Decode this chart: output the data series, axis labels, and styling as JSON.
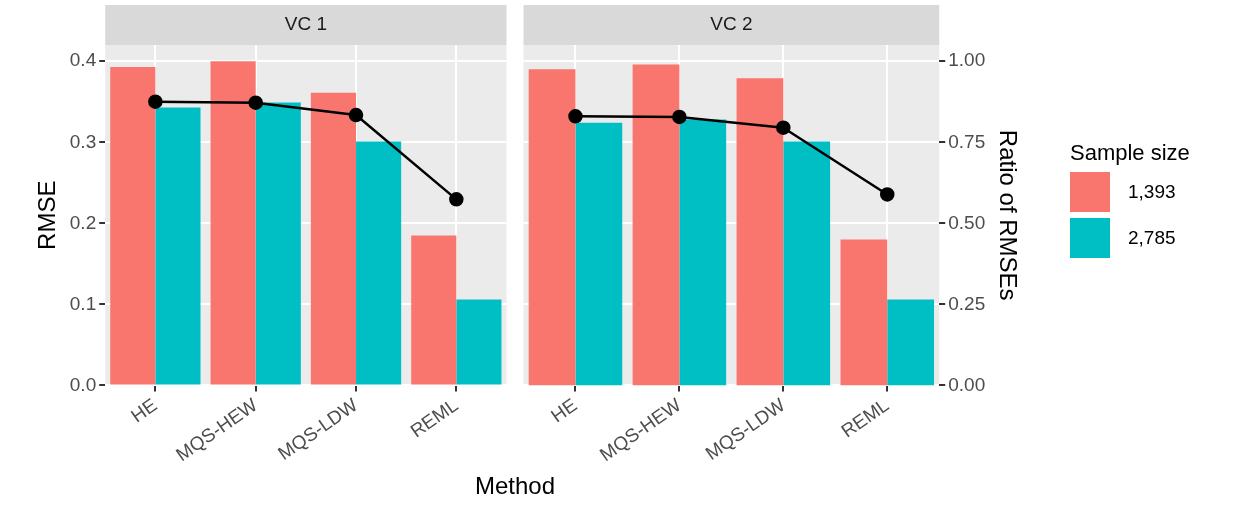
{
  "chart_data": [
    {
      "type": "bar",
      "title": "VC 1",
      "xlabel": "Method",
      "ylabel": "RMSE",
      "categories": [
        "HE",
        "MQS-HEW",
        "MQS-LDW",
        "REML"
      ],
      "series": [
        {
          "name": "1,393",
          "color": "#f8766d",
          "values": [
            0.393,
            0.4,
            0.361,
            0.185
          ]
        },
        {
          "name": "2,785",
          "color": "#00bfc4",
          "values": [
            0.343,
            0.349,
            0.301,
            0.106
          ]
        },
        {
          "type": "line",
          "axis": "y2",
          "color": "#000000",
          "values": [
            0.875,
            0.872,
            0.834,
            0.574
          ]
        }
      ],
      "ylim": [
        0,
        0.42
      ],
      "yticks": [
        {
          "value": 0,
          "label": "0.0"
        },
        0.1,
        0.2,
        0.3,
        0.4
      ],
      "y2lim": [
        0,
        1.05
      ],
      "grid": true,
      "marker": "circle",
      "tick_labels": [
        "x",
        "y"
      ],
      "legend_title": "Sample size",
      "legend": "right"
    },
    {
      "type": "bar",
      "title": "VC 2",
      "y2label": "Ratio of RMSEs",
      "categories": [
        "HE",
        "MQS-HEW",
        "MQS-LDW",
        "REML"
      ],
      "series": [
        {
          "name": "1,393",
          "color": "#f8766d",
          "values": [
            0.39,
            0.396,
            0.379,
            0.18
          ]
        },
        {
          "name": "2,785",
          "color": "#00bfc4",
          "values": [
            0.324,
            0.328,
            0.301,
            0.106
          ]
        },
        {
          "type": "line",
          "axis": "y2",
          "color": "#000000",
          "values": [
            0.83,
            0.828,
            0.795,
            0.589
          ]
        }
      ],
      "ylim": [
        0,
        0.42
      ],
      "y2lim": [
        0,
        1.05
      ],
      "y2ticks": [
        {
          "value": 0,
          "label": "0.00"
        },
        0.25,
        {
          "value": 0.5,
          "label": "0.50"
        },
        0.75,
        {
          "value": 1,
          "label": "1.00"
        }
      ],
      "grid": true,
      "marker": "circle",
      "tick_labels": [
        "x",
        "y2"
      ]
    }
  ]
}
